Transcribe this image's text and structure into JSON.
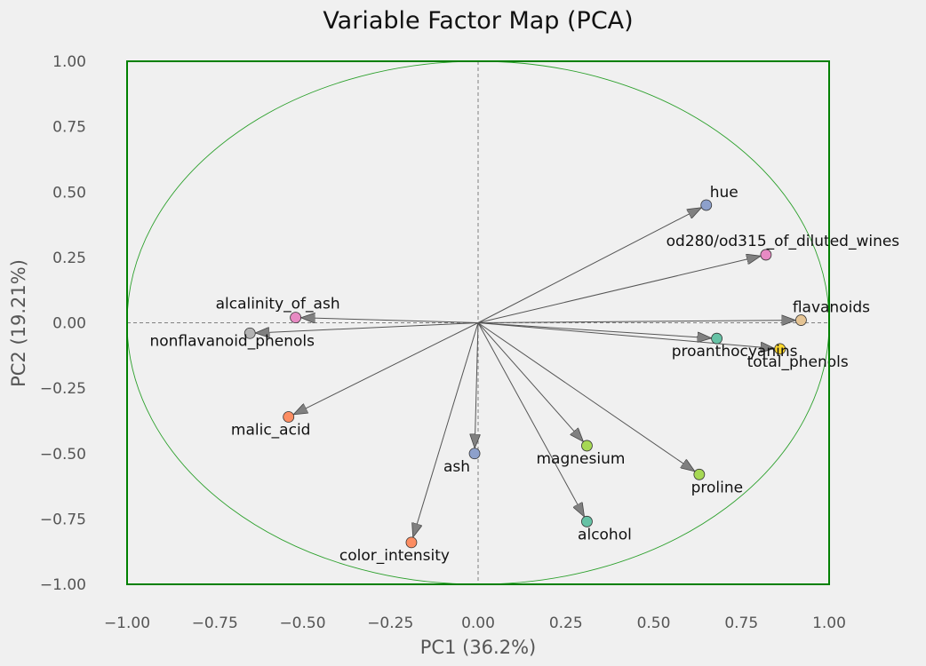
{
  "chart_data": {
    "type": "scatter",
    "title": "Variable Factor Map (PCA)",
    "xlabel": "PC1 (36.2%)",
    "ylabel": "PC2 (19.21%)",
    "xlim": [
      -1.0,
      1.0
    ],
    "ylim": [
      -1.0,
      1.0
    ],
    "xticks": [
      "−1.00",
      "−0.75",
      "−0.50",
      "−0.25",
      "0.00",
      "0.25",
      "0.50",
      "0.75",
      "1.00"
    ],
    "yticks": [
      "1.00",
      "0.75",
      "0.50",
      "0.25",
      "0.00",
      "−0.25",
      "−0.50",
      "−0.75",
      "−1.00"
    ],
    "grid": false,
    "unit_circle": true,
    "colors": {
      "frame": "#008000",
      "circle": "#2ca02c",
      "arrow": "#555555",
      "arrowhead": "#808080",
      "zero_lines": "#808080"
    },
    "points": [
      {
        "label": "hue",
        "x": 0.65,
        "y": 0.45,
        "color": "#8da0cb"
      },
      {
        "label": "od280/od315_of_diluted_wines",
        "x": 0.82,
        "y": 0.26,
        "color": "#e78ac3"
      },
      {
        "label": "flavanoids",
        "x": 0.92,
        "y": 0.01,
        "color": "#e5c494"
      },
      {
        "label": "proanthocyanins",
        "x": 0.68,
        "y": -0.06,
        "color": "#66c2a5"
      },
      {
        "label": "total_phenols",
        "x": 0.86,
        "y": -0.1,
        "color": "#ffd92f"
      },
      {
        "label": "alcalinity_of_ash",
        "x": -0.52,
        "y": 0.02,
        "color": "#e78ac3"
      },
      {
        "label": "nonflavanoid_phenols",
        "x": -0.65,
        "y": -0.04,
        "color": "#b3b3b3"
      },
      {
        "label": "malic_acid",
        "x": -0.54,
        "y": -0.36,
        "color": "#fc8d62"
      },
      {
        "label": "ash",
        "x": -0.01,
        "y": -0.5,
        "color": "#8da0cb"
      },
      {
        "label": "magnesium",
        "x": 0.31,
        "y": -0.47,
        "color": "#a6d854"
      },
      {
        "label": "proline",
        "x": 0.63,
        "y": -0.58,
        "color": "#a6d854"
      },
      {
        "label": "alcohol",
        "x": 0.31,
        "y": -0.76,
        "color": "#66c2a5"
      },
      {
        "label": "color_intensity",
        "x": -0.19,
        "y": -0.84,
        "color": "#fc8d62"
      }
    ]
  }
}
